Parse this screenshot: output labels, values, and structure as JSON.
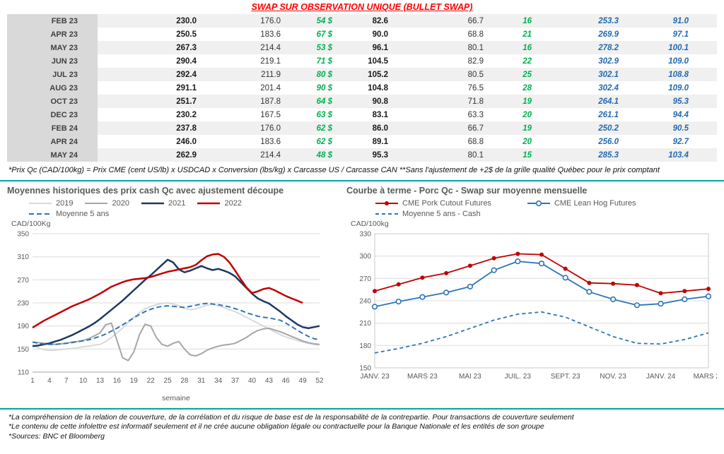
{
  "title": "SWAP SUR OBSERVATION UNIQUE (BULLET SWAP)",
  "colors": {
    "teal_rule": "#00a79b",
    "green_text": "#00b050",
    "blue_text": "#2569af",
    "red_series": "#c00000",
    "navy_series": "#1f3864",
    "steel_blue_series": "#2e75b6",
    "gray_2020": "#a6a6a6",
    "light_gray_2019": "#d9d9d9"
  },
  "table": {
    "rows": [
      {
        "month": "FEB 23",
        "values": [
          "230.0",
          "176.0",
          "54 $",
          "82.6",
          "66.7",
          "16",
          "253.3",
          "91.0"
        ]
      },
      {
        "month": "APR 23",
        "values": [
          "250.5",
          "183.6",
          "67 $",
          "90.0",
          "68.8",
          "21",
          "269.9",
          "97.1"
        ]
      },
      {
        "month": "MAY 23",
        "values": [
          "267.3",
          "214.4",
          "53 $",
          "96.1",
          "80.1",
          "16",
          "278.2",
          "100.1"
        ]
      },
      {
        "month": "JUN 23",
        "values": [
          "290.4",
          "219.1",
          "71 $",
          "104.5",
          "82.9",
          "22",
          "302.9",
          "109.0"
        ]
      },
      {
        "month": "JUL 23",
        "values": [
          "292.4",
          "211.9",
          "80 $",
          "105.2",
          "80.5",
          "25",
          "302.1",
          "108.8"
        ]
      },
      {
        "month": "AUG 23",
        "values": [
          "291.1",
          "201.4",
          "90 $",
          "104.8",
          "76.5",
          "28",
          "302.4",
          "109.0"
        ]
      },
      {
        "month": "OCT 23",
        "values": [
          "251.7",
          "187.8",
          "64 $",
          "90.8",
          "71.8",
          "19",
          "264.1",
          "95.3"
        ]
      },
      {
        "month": "DEC 23",
        "values": [
          "230.2",
          "167.5",
          "63 $",
          "83.1",
          "63.3",
          "20",
          "261.1",
          "94.4"
        ]
      },
      {
        "month": "FEB 24",
        "values": [
          "237.8",
          "176.0",
          "62 $",
          "86.0",
          "66.7",
          "19",
          "250.2",
          "90.5"
        ]
      },
      {
        "month": "APR 24",
        "values": [
          "246.0",
          "183.6",
          "62 $",
          "89.1",
          "68.8",
          "20",
          "256.0",
          "92.7"
        ]
      },
      {
        "month": "MAY 24",
        "values": [
          "262.9",
          "214.4",
          "48 $",
          "95.3",
          "80.1",
          "15",
          "285.3",
          "103.4"
        ]
      }
    ]
  },
  "table_footnote": "*Prix Qc (CAD/100kg) = Prix CME (cent US/lb) x USDCAD x Conversion (lbs/kg) x Carcasse US / Carcasse CAN **Sans l'ajustement de +2$ de la grille qualité Québec pour le prix comptant",
  "chart_data": [
    {
      "type": "line",
      "title": "Moyennes historiques des prix cash Qc avec ajustement découpe",
      "y_unit": "CAD/100Kg",
      "xlabel": "semaine",
      "ylim": [
        110,
        350
      ],
      "ystep": 40,
      "xlim": [
        1,
        52
      ],
      "xticks": [
        1,
        4,
        7,
        10,
        13,
        16,
        19,
        22,
        25,
        28,
        31,
        34,
        37,
        40,
        43,
        46,
        49,
        52
      ],
      "grid": true,
      "legend_position": "top",
      "series": [
        {
          "name": "2019",
          "color": "#d9d9d9",
          "width": 2,
          "values": [
            157,
            152,
            149,
            148,
            148,
            149,
            150,
            151,
            152,
            154,
            155,
            157,
            158,
            163,
            170,
            178,
            186,
            196,
            205,
            213,
            220,
            224,
            227,
            229,
            230,
            228,
            225,
            221,
            218,
            220,
            223,
            226,
            228,
            225,
            222,
            218,
            215,
            210,
            205,
            200,
            195,
            190,
            185,
            180,
            175,
            171,
            168,
            165,
            162,
            160,
            158,
            157
          ]
        },
        {
          "name": "2020",
          "color": "#a6a6a6",
          "width": 2,
          "values": [
            162,
            161,
            160,
            159,
            158,
            159,
            160,
            162,
            163,
            165,
            168,
            173,
            178,
            192,
            195,
            165,
            135,
            130,
            145,
            175,
            193,
            190,
            170,
            158,
            155,
            160,
            163,
            150,
            140,
            138,
            142,
            148,
            152,
            155,
            157,
            158,
            160,
            165,
            170,
            177,
            182,
            185,
            186,
            183,
            180,
            176,
            172,
            168,
            164,
            161,
            159,
            158
          ]
        },
        {
          "name": "2021",
          "color": "#1f3864",
          "width": 2.5,
          "values": [
            155,
            156,
            158,
            160,
            163,
            166,
            170,
            174,
            179,
            184,
            189,
            195,
            202,
            210,
            218,
            226,
            234,
            243,
            252,
            261,
            270,
            278,
            287,
            296,
            305,
            300,
            288,
            283,
            286,
            290,
            294,
            290,
            287,
            289,
            286,
            282,
            276,
            266,
            256,
            246,
            238,
            233,
            229,
            222,
            215,
            207,
            200,
            193,
            188,
            186,
            188,
            190
          ]
        },
        {
          "name": "2022",
          "color": "#c00000",
          "width": 2.5,
          "values": [
            187,
            193,
            199,
            204,
            209,
            214,
            219,
            224,
            228,
            232,
            236,
            241,
            246,
            252,
            258,
            262,
            266,
            269,
            271,
            272,
            273,
            275,
            278,
            281,
            284,
            286,
            288,
            290,
            292,
            296,
            304,
            311,
            314,
            315,
            310,
            300,
            286,
            271,
            257,
            247,
            250,
            254,
            256,
            252,
            247,
            242,
            238,
            234,
            230
          ]
        },
        {
          "name": "Moyenne 5 ans",
          "color": "#2e75b6",
          "width": 2,
          "dash": "7 4",
          "values": [
            162,
            160,
            159,
            158,
            158,
            159,
            160,
            161,
            163,
            164,
            166,
            169,
            172,
            176,
            181,
            186,
            192,
            198,
            204,
            210,
            215,
            219,
            222,
            224,
            225,
            224,
            223,
            222,
            224,
            226,
            228,
            229,
            228,
            227,
            225,
            223,
            220,
            217,
            213,
            210,
            207,
            205,
            204,
            202,
            200,
            195,
            189,
            183,
            177,
            172,
            168,
            166
          ]
        }
      ]
    },
    {
      "type": "line",
      "title": "Courbe à terme - Porc Qc - Swap sur moyenne mensuelle",
      "y_unit": "CAD/100kg",
      "ylim": [
        150,
        330
      ],
      "ystep": 30,
      "xlim": [
        0,
        14
      ],
      "xtick_indices": [
        0,
        2,
        4,
        6,
        8,
        10,
        12,
        14
      ],
      "xtick_labels": [
        "JANV. 23",
        "MARS 23",
        "MAI 23",
        "JUIL. 23",
        "SEPT. 23",
        "NOV. 23",
        "JANV. 24",
        "MARS 24"
      ],
      "grid": true,
      "border": true,
      "legend_position": "top",
      "series": [
        {
          "name": "CME Pork Cutout Futures",
          "color": "#c00000",
          "width": 1.8,
          "marker": "dot",
          "values": [
            253,
            262,
            271,
            277,
            287,
            297,
            303,
            302,
            283,
            264,
            263,
            261,
            250,
            253,
            256
          ]
        },
        {
          "name": "CME Lean Hog Futures",
          "color": "#2e75b6",
          "width": 1.8,
          "marker": "circle",
          "values": [
            232,
            239,
            245,
            251,
            259,
            281,
            293,
            290,
            271,
            252,
            242,
            234,
            236,
            242,
            246
          ]
        },
        {
          "name": "Moyenne 5 ans - Cash",
          "color": "#2e75b6",
          "width": 1.8,
          "dash": "5 4",
          "values": [
            170,
            176,
            183,
            192,
            203,
            214,
            222,
            225,
            218,
            205,
            192,
            183,
            182,
            188,
            197
          ]
        }
      ]
    }
  ],
  "footnotes": [
    "*La compréhension de la relation de couverture, de la corrélation et du risque de base est de la responsabilité de la contrepartie. Pour transactions de couverture seulement",
    "*Le contenu de cette infolettre est informatif seulement et il ne crée aucune obligation légale ou contractuelle pour la Banque Nationale et les entités de son groupe",
    "*Sources: BNC et Bloomberg"
  ]
}
